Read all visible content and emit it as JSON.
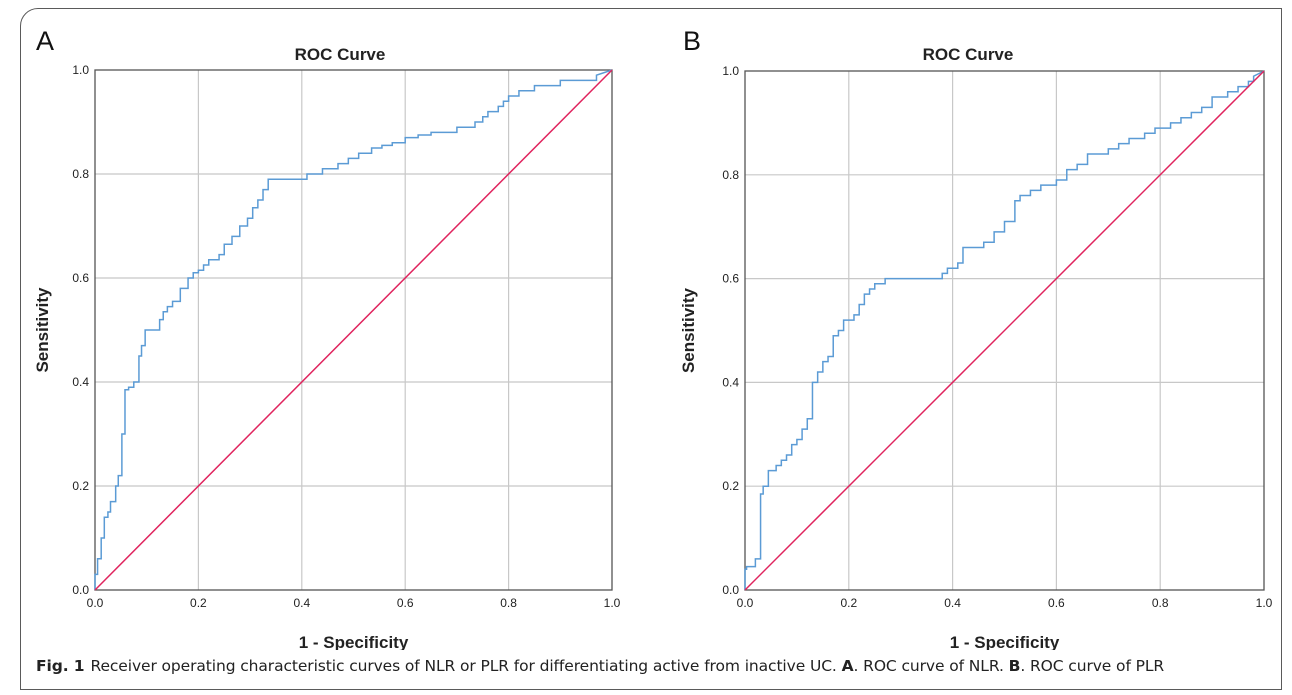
{
  "chart_data": [
    {
      "panel_label": "A",
      "type": "line",
      "title": "ROC Curve",
      "xlabel": "1 - Specificity",
      "ylabel": "Sensitivity",
      "xlim": [
        0.0,
        1.0
      ],
      "ylim": [
        0.0,
        1.0
      ],
      "xticks": [
        "0.0",
        "0.2",
        "0.4",
        "0.6",
        "0.8",
        "1.0"
      ],
      "yticks": [
        "0.0",
        "0.2",
        "0.4",
        "0.6",
        "0.8",
        "1.0"
      ],
      "grid": true,
      "legend": "none",
      "series": [
        {
          "color": "#5b9bd5",
          "x": [
            0.0,
            0.0,
            0.005,
            0.005,
            0.012,
            0.012,
            0.018,
            0.018,
            0.025,
            0.025,
            0.03,
            0.03,
            0.04,
            0.04,
            0.045,
            0.045,
            0.052,
            0.052,
            0.058,
            0.058,
            0.065,
            0.065,
            0.075,
            0.075,
            0.085,
            0.085,
            0.09,
            0.09,
            0.097,
            0.097,
            0.125,
            0.125,
            0.132,
            0.132,
            0.14,
            0.14,
            0.15,
            0.15,
            0.165,
            0.165,
            0.18,
            0.18,
            0.19,
            0.19,
            0.2,
            0.2,
            0.21,
            0.21,
            0.22,
            0.22,
            0.24,
            0.24,
            0.25,
            0.25,
            0.265,
            0.265,
            0.28,
            0.28,
            0.295,
            0.295,
            0.305,
            0.305,
            0.315,
            0.315,
            0.325,
            0.325,
            0.335,
            0.335,
            0.345,
            0.345,
            0.41,
            0.41,
            0.44,
            0.44,
            0.47,
            0.47,
            0.49,
            0.49,
            0.51,
            0.51,
            0.535,
            0.535,
            0.555,
            0.555,
            0.575,
            0.575,
            0.6,
            0.6,
            0.625,
            0.625,
            0.65,
            0.65,
            0.7,
            0.7,
            0.735,
            0.735,
            0.75,
            0.75,
            0.76,
            0.76,
            0.78,
            0.78,
            0.79,
            0.79,
            0.8,
            0.8,
            0.82,
            0.82,
            0.85,
            0.85,
            0.9,
            0.9,
            0.97,
            0.97,
            1.0
          ],
          "y": [
            0.0,
            0.03,
            0.03,
            0.06,
            0.06,
            0.1,
            0.1,
            0.14,
            0.14,
            0.15,
            0.15,
            0.17,
            0.17,
            0.2,
            0.2,
            0.22,
            0.22,
            0.3,
            0.3,
            0.385,
            0.385,
            0.39,
            0.39,
            0.4,
            0.4,
            0.45,
            0.45,
            0.47,
            0.47,
            0.5,
            0.5,
            0.52,
            0.52,
            0.535,
            0.535,
            0.545,
            0.545,
            0.555,
            0.555,
            0.58,
            0.58,
            0.6,
            0.6,
            0.61,
            0.61,
            0.615,
            0.615,
            0.625,
            0.625,
            0.635,
            0.635,
            0.645,
            0.645,
            0.665,
            0.665,
            0.68,
            0.68,
            0.7,
            0.7,
            0.715,
            0.715,
            0.735,
            0.735,
            0.75,
            0.75,
            0.77,
            0.77,
            0.79,
            0.79,
            0.79,
            0.79,
            0.8,
            0.8,
            0.81,
            0.81,
            0.82,
            0.82,
            0.83,
            0.83,
            0.84,
            0.84,
            0.85,
            0.85,
            0.855,
            0.855,
            0.86,
            0.86,
            0.87,
            0.87,
            0.875,
            0.875,
            0.88,
            0.88,
            0.89,
            0.89,
            0.9,
            0.9,
            0.91,
            0.91,
            0.92,
            0.92,
            0.93,
            0.93,
            0.94,
            0.94,
            0.95,
            0.95,
            0.96,
            0.96,
            0.97,
            0.97,
            0.98,
            0.98,
            0.99,
            1.0
          ]
        },
        {
          "color": "#e0245e",
          "x": [
            0.0,
            1.0
          ],
          "y": [
            0.0,
            1.0
          ]
        }
      ]
    },
    {
      "panel_label": "B",
      "type": "line",
      "title": "ROC Curve",
      "xlabel": "1 - Specificity",
      "ylabel": "Sensitivity",
      "xlim": [
        0.0,
        1.0
      ],
      "ylim": [
        0.0,
        1.0
      ],
      "xticks": [
        "0.0",
        "0.2",
        "0.4",
        "0.6",
        "0.8",
        "1.0"
      ],
      "yticks": [
        "0.0",
        "0.2",
        "0.4",
        "0.6",
        "0.8",
        "1.0"
      ],
      "grid": true,
      "legend": "none",
      "series": [
        {
          "color": "#5b9bd5",
          "x": [
            0.0,
            0.0,
            0.003,
            0.003,
            0.02,
            0.02,
            0.03,
            0.03,
            0.035,
            0.035,
            0.045,
            0.045,
            0.06,
            0.06,
            0.07,
            0.07,
            0.08,
            0.08,
            0.09,
            0.09,
            0.1,
            0.1,
            0.11,
            0.11,
            0.12,
            0.12,
            0.13,
            0.13,
            0.14,
            0.14,
            0.15,
            0.15,
            0.16,
            0.16,
            0.17,
            0.17,
            0.18,
            0.18,
            0.19,
            0.19,
            0.21,
            0.21,
            0.22,
            0.22,
            0.23,
            0.23,
            0.24,
            0.24,
            0.25,
            0.25,
            0.27,
            0.27,
            0.28,
            0.28,
            0.38,
            0.38,
            0.39,
            0.39,
            0.41,
            0.41,
            0.42,
            0.42,
            0.46,
            0.46,
            0.48,
            0.48,
            0.5,
            0.5,
            0.52,
            0.52,
            0.53,
            0.53,
            0.55,
            0.55,
            0.57,
            0.57,
            0.6,
            0.6,
            0.62,
            0.62,
            0.64,
            0.64,
            0.66,
            0.66,
            0.7,
            0.7,
            0.72,
            0.72,
            0.74,
            0.74,
            0.77,
            0.77,
            0.79,
            0.79,
            0.82,
            0.82,
            0.84,
            0.84,
            0.86,
            0.86,
            0.88,
            0.88,
            0.9,
            0.9,
            0.93,
            0.93,
            0.95,
            0.95,
            0.97,
            0.97,
            0.98,
            0.98,
            1.0
          ],
          "y": [
            0.0,
            0.04,
            0.04,
            0.045,
            0.045,
            0.06,
            0.06,
            0.185,
            0.185,
            0.2,
            0.2,
            0.23,
            0.23,
            0.24,
            0.24,
            0.25,
            0.25,
            0.26,
            0.26,
            0.28,
            0.28,
            0.29,
            0.29,
            0.31,
            0.31,
            0.33,
            0.33,
            0.4,
            0.4,
            0.42,
            0.42,
            0.44,
            0.44,
            0.45,
            0.45,
            0.49,
            0.49,
            0.5,
            0.5,
            0.52,
            0.52,
            0.53,
            0.53,
            0.55,
            0.55,
            0.57,
            0.57,
            0.58,
            0.58,
            0.59,
            0.59,
            0.6,
            0.6,
            0.6,
            0.6,
            0.61,
            0.61,
            0.62,
            0.62,
            0.63,
            0.63,
            0.66,
            0.66,
            0.67,
            0.67,
            0.69,
            0.69,
            0.71,
            0.71,
            0.75,
            0.75,
            0.76,
            0.76,
            0.77,
            0.77,
            0.78,
            0.78,
            0.79,
            0.79,
            0.81,
            0.81,
            0.82,
            0.82,
            0.84,
            0.84,
            0.85,
            0.85,
            0.86,
            0.86,
            0.87,
            0.87,
            0.88,
            0.88,
            0.89,
            0.89,
            0.9,
            0.9,
            0.91,
            0.91,
            0.92,
            0.92,
            0.93,
            0.93,
            0.95,
            0.95,
            0.96,
            0.96,
            0.97,
            0.97,
            0.98,
            0.98,
            0.99,
            1.0
          ]
        },
        {
          "color": "#e0245e",
          "x": [
            0.0,
            1.0
          ],
          "y": [
            0.0,
            1.0
          ]
        }
      ]
    }
  ],
  "caption": {
    "fig_label": "Fig. 1",
    "text_1": "Receiver operating characteristic curves of NLR or PLR for differentiating active from inactive UC.",
    "label_a": "A",
    "text_2": ". ROC curve of NLR.",
    "label_b": "B",
    "text_3": ". ROC curve of PLR"
  }
}
